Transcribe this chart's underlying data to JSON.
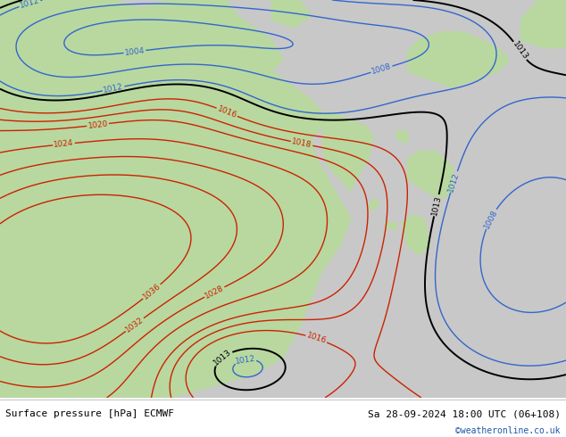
{
  "title_left": "Surface pressure [hPa] ECMWF",
  "title_right": "Sa 28-09-2024 18:00 UTC (06+108)",
  "credit": "©weatheronline.co.uk",
  "land_color": "#b8d8a0",
  "sea_color": "#c8c8c8",
  "land_sea_border": "#888888",
  "isobar_color_blue": "#3366cc",
  "isobar_color_black": "#000000",
  "isobar_color_red": "#cc2200",
  "label_fontsize": 6.5,
  "title_fontsize": 8,
  "credit_color": "#2255aa",
  "footer_bg": "#ffffff"
}
